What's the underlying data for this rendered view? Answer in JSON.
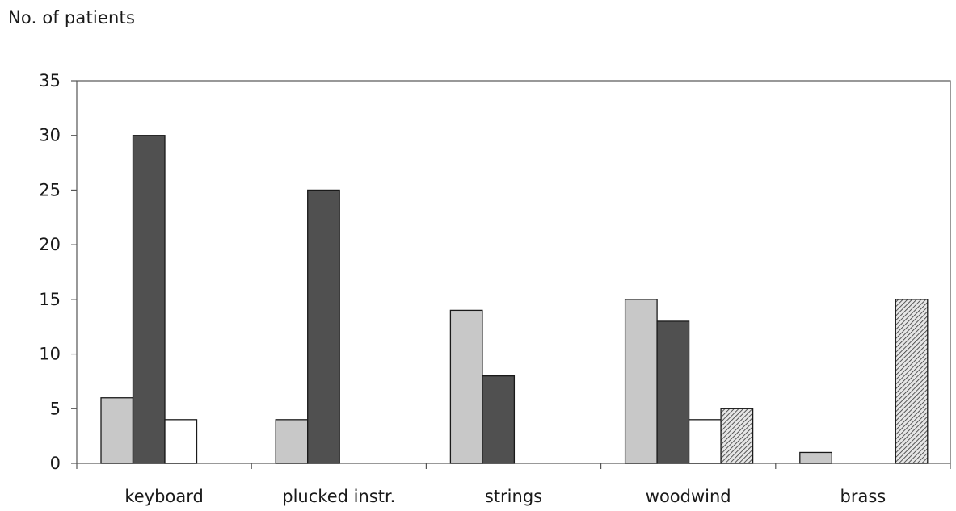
{
  "chart_data": {
    "type": "bar",
    "title": "",
    "xlabel": "",
    "ylabel": "No. of patients",
    "ylim": [
      0,
      35
    ],
    "yticks": [
      0,
      5,
      10,
      15,
      20,
      25,
      30,
      35
    ],
    "grid": false,
    "categories": [
      "keyboard",
      "plucked instr.",
      "strings",
      "woodwind",
      "brass"
    ],
    "series": [
      {
        "values": [
          6,
          4,
          14,
          15,
          1
        ],
        "color": "#c8c8c8",
        "pattern": "solid"
      },
      {
        "values": [
          30,
          25,
          8,
          13,
          0
        ],
        "color": "#505050",
        "pattern": "solid"
      },
      {
        "values": [
          4,
          0,
          0,
          4,
          0
        ],
        "color": "#ffffff",
        "pattern": "solid"
      },
      {
        "values": [
          0,
          0,
          0,
          5,
          15
        ],
        "color": "#9a9a9a",
        "pattern": "hatched"
      }
    ]
  }
}
